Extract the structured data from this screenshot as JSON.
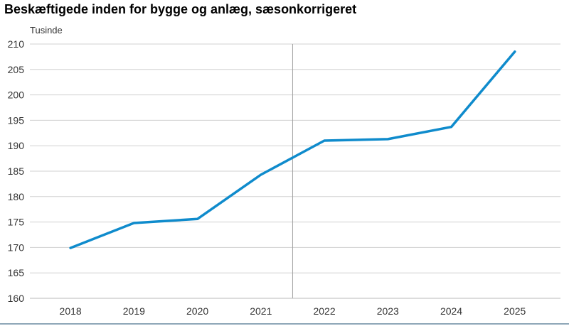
{
  "chart_data": {
    "type": "line",
    "title": "Beskæftigede inden for bygge og anlæg, sæsonkorrigeret",
    "ylabel": "Tusinde",
    "xlabel": "",
    "ylim": [
      160,
      210
    ],
    "yticks": [
      160,
      165,
      170,
      175,
      180,
      185,
      190,
      195,
      200,
      205,
      210
    ],
    "categories": [
      "2018",
      "2019",
      "2020",
      "2021",
      "2022",
      "2023",
      "2024",
      "2025"
    ],
    "x": [
      2018.0,
      2019.0,
      2020.0,
      2021.0,
      2022.0,
      2023.0,
      2024.0,
      2025.0
    ],
    "series": [
      {
        "values": [
          169.9,
          174.8,
          175.6,
          184.3,
          191.0,
          191.3,
          193.7,
          208.5
        ]
      }
    ],
    "grid": true,
    "color": "#0f8bcc"
  }
}
